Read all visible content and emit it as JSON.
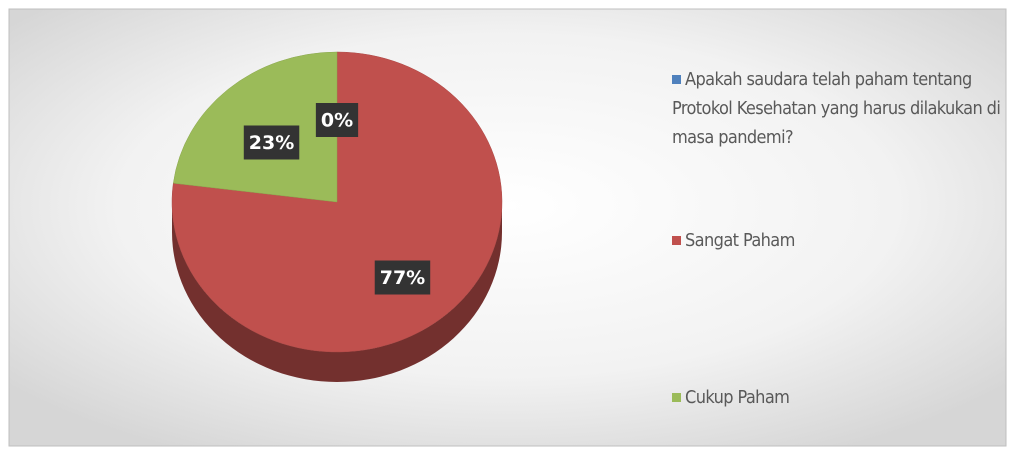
{
  "chart_data": {
    "type": "pie3d",
    "categories": [
      "Apakah saudara telah paham tentang Protokol Kesehatan yang harus dilakukan di masa pandemi?",
      "Sangat Paham",
      "Cukup Paham"
    ],
    "values": [
      0,
      77,
      23
    ],
    "value_labels": [
      "0%",
      "77%",
      "23%"
    ],
    "colors": [
      "#4f81bd",
      "#c0504d",
      "#9bbb59"
    ],
    "legend": "right"
  }
}
